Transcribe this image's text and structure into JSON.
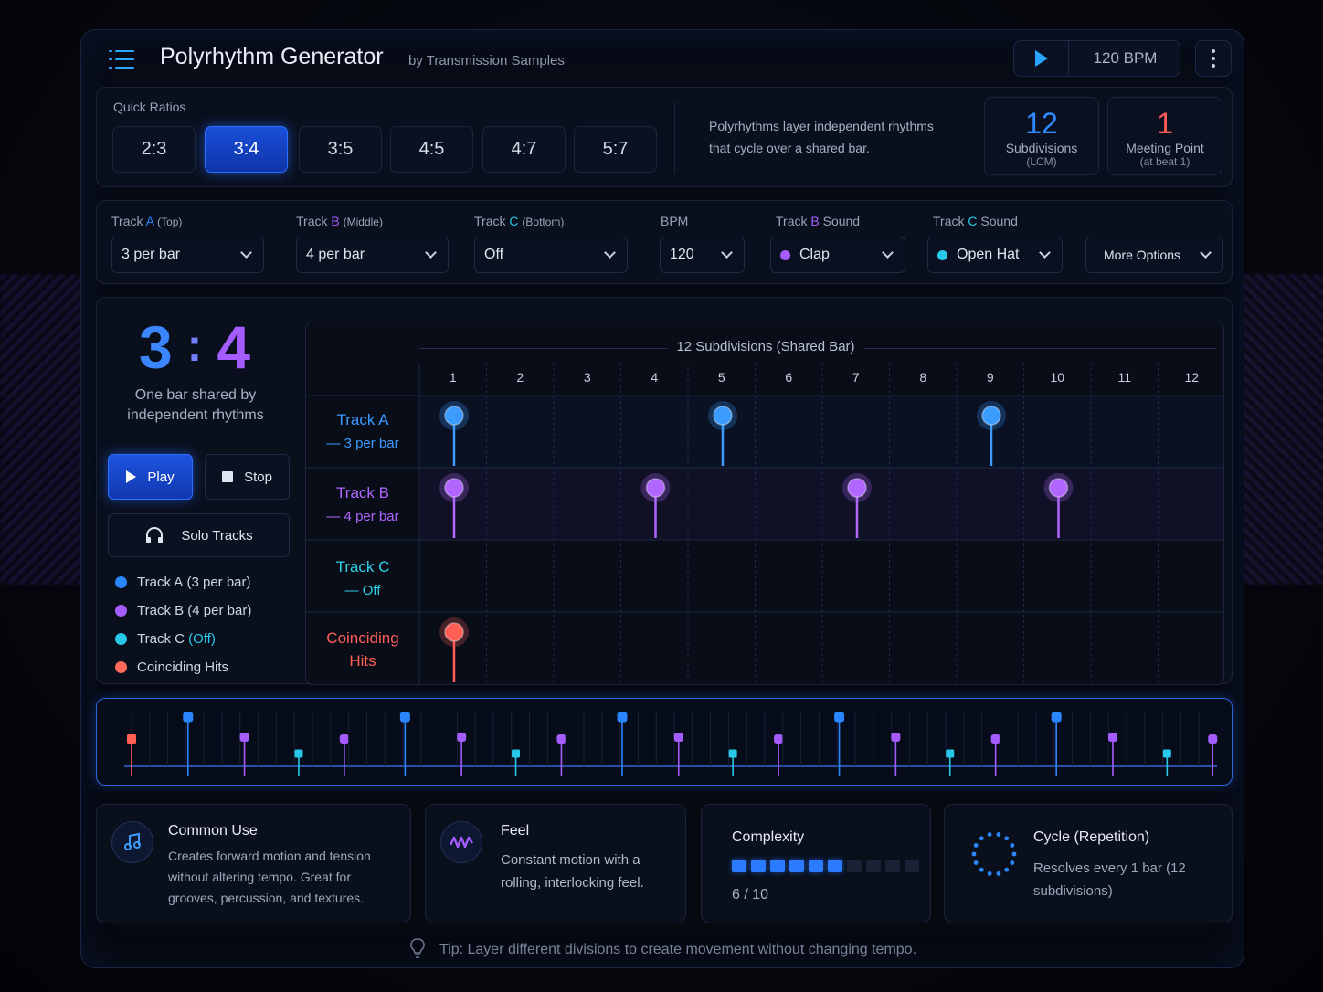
{
  "header": {
    "title": "Polyrhythm Generator",
    "subtitle": "by Transmission Samples",
    "bpm_display": "120 BPM",
    "menu_icon": "hamburger-menu-icon",
    "play_icon": "play-icon",
    "more_icon": "more-vertical-icon"
  },
  "quick_ratios": {
    "label": "Quick Ratios",
    "options": [
      "2:3",
      "3:4",
      "3:5",
      "4:5",
      "4:7",
      "5:7"
    ],
    "selected": "3:4",
    "description": "Polyrhythms layer independent rhythms that cycle over a shared bar.",
    "stats": [
      {
        "value": "12",
        "label": "Subdivisions",
        "sub": "(LCM)",
        "color": "#2f8bff"
      },
      {
        "value": "1",
        "label": "Meeting Point",
        "sub": "(at beat 1)",
        "color": "#ff5b57"
      }
    ]
  },
  "selectors": {
    "track_a": {
      "prefix": "Track",
      "letter": "A",
      "suffix": "(Top)",
      "value": "3 per bar"
    },
    "track_b": {
      "prefix": "Track",
      "letter": "B",
      "suffix": "(Middle)",
      "value": "4 per bar"
    },
    "track_c": {
      "prefix": "Track",
      "letter": "C",
      "suffix": "(Bottom)",
      "value": "Off"
    },
    "bpm": {
      "label": "BPM",
      "value": "120"
    },
    "track_b_sound": {
      "prefix": "Track",
      "letter": "B",
      "suffix": "Sound",
      "value": "Clap"
    },
    "track_c_sound": {
      "prefix": "Track",
      "letter": "C",
      "suffix": "Sound",
      "value": "Open Hat"
    },
    "more_options": "More Options"
  },
  "main": {
    "ratio_left": "3",
    "ratio_sep": ":",
    "ratio_right": "4",
    "ratio_caption": "One bar shared by independent rhythms",
    "play_label": "Play",
    "stop_label": "Stop",
    "solo_label": "Solo Tracks",
    "legend": [
      {
        "name": "Track A",
        "detail": "(3 per bar)",
        "color": "#2a86ff"
      },
      {
        "name": "Track B",
        "detail": "(4 per bar)",
        "color": "#a45cff"
      },
      {
        "name": "Track C",
        "detail": "(Off)",
        "color": "#27c8e8"
      },
      {
        "name": "Coinciding Hits",
        "detail": "",
        "color": "#ff6a5c"
      }
    ]
  },
  "grid": {
    "title": "12 Subdivisions (Shared Bar)",
    "columns": [
      "1",
      "2",
      "3",
      "4",
      "5",
      "6",
      "7",
      "8",
      "9",
      "10",
      "11",
      "12"
    ],
    "rows": [
      {
        "name": "Track A",
        "detail": "— 3 per bar",
        "color": "#3b9bff",
        "hits": [
          1,
          5,
          9
        ]
      },
      {
        "name": "Track B",
        "detail": "— 4 per bar",
        "color": "#b066ff",
        "hits": [
          1,
          4,
          7,
          10
        ]
      },
      {
        "name": "Track C",
        "detail": "— Off",
        "color": "#2fd0e6",
        "hits": []
      },
      {
        "name": "Coinciding",
        "detail": "Hits",
        "color": "#ff5e55",
        "hits": [
          1
        ]
      }
    ]
  },
  "cards": {
    "common_use": {
      "title": "Common Use",
      "text": "Creates forward motion and tension without altering tempo. Great for grooves, percussion, and textures.",
      "icon": "music-note-icon"
    },
    "feel": {
      "title": "Feel",
      "text": "Constant motion with a rolling, interlocking feel.",
      "icon": "wave-icon"
    },
    "complexity": {
      "title": "Complexity",
      "score": 6,
      "max": 10,
      "score_text": "6 / 10"
    },
    "cycle": {
      "title": "Cycle (Repetition)",
      "text": "Resolves every 1 bar (12 subdivisions)",
      "icon": "cycle-icon"
    }
  },
  "tip": "Tip: Layer different divisions to create movement without changing tempo.",
  "colors": {
    "accent": "#2a86ff",
    "track_a": "#2a86ff",
    "track_b": "#a45cff",
    "track_c": "#27c8e8",
    "coincide": "#ff5e55"
  }
}
